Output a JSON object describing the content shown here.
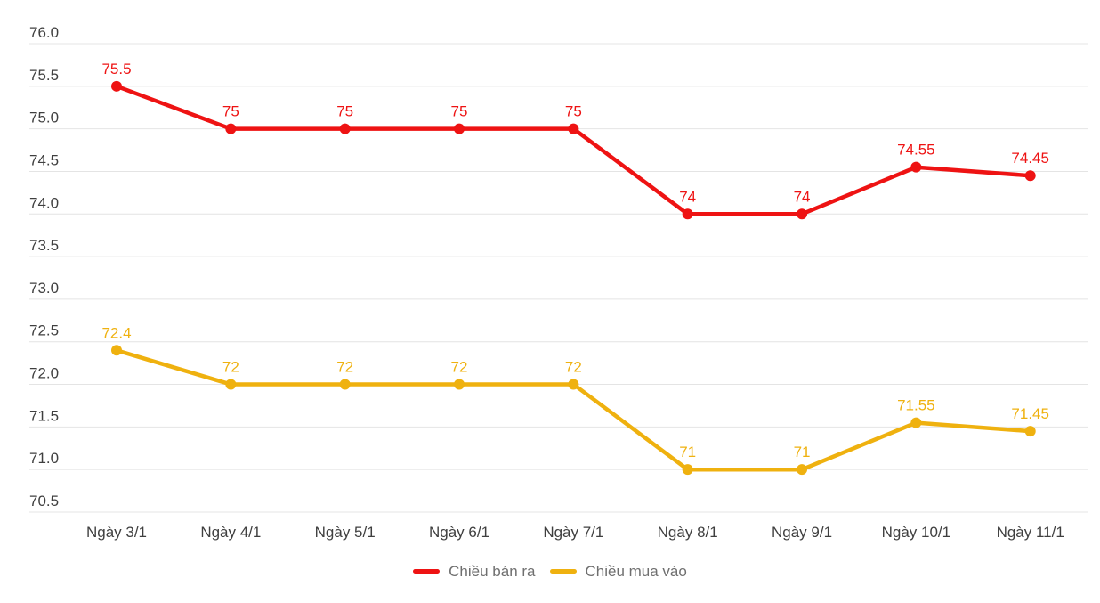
{
  "chart_data": {
    "type": "line",
    "categories": [
      "Ngày 3/1",
      "Ngày 4/1",
      "Ngày 5/1",
      "Ngày 6/1",
      "Ngày 7/1",
      "Ngày 8/1",
      "Ngày 9/1",
      "Ngày 10/1",
      "Ngày 11/1"
    ],
    "series": [
      {
        "name": "Chiều bán ra",
        "color": "#ee1313",
        "values": [
          75.5,
          75,
          75,
          75,
          75,
          74,
          74,
          74.55,
          74.45
        ],
        "point_labels": [
          "75.5",
          "75",
          "75",
          "75",
          "75",
          "74",
          "74",
          "74.55",
          "74.45"
        ]
      },
      {
        "name": "Chiều mua vào",
        "color": "#efb10f",
        "values": [
          72.4,
          72,
          72,
          72,
          72,
          71,
          71,
          71.55,
          71.45
        ],
        "point_labels": [
          "72.4",
          "72",
          "72",
          "72",
          "72",
          "71",
          "71",
          "71.55",
          "71.45"
        ]
      }
    ],
    "title": "",
    "xlabel": "",
    "ylabel": "",
    "ylim": [
      70.5,
      76.0
    ],
    "ytick_values": [
      76.0,
      75.5,
      75.0,
      74.5,
      74.0,
      73.5,
      73.0,
      72.5,
      72.0,
      71.5,
      71.0,
      70.5
    ],
    "ytick_labels": [
      "76.0",
      "75.5",
      "75.0",
      "74.5",
      "74.0",
      "73.5",
      "73.0",
      "72.5",
      "72.0",
      "71.5",
      "71.0",
      "70.5"
    ],
    "grid": true,
    "legend_position": "bottom"
  },
  "colors": {
    "background": "#ffffff",
    "gridline": "#e4e4e4",
    "axis_text": "#3f3f3f",
    "legend_text": "#6f6f6f"
  }
}
